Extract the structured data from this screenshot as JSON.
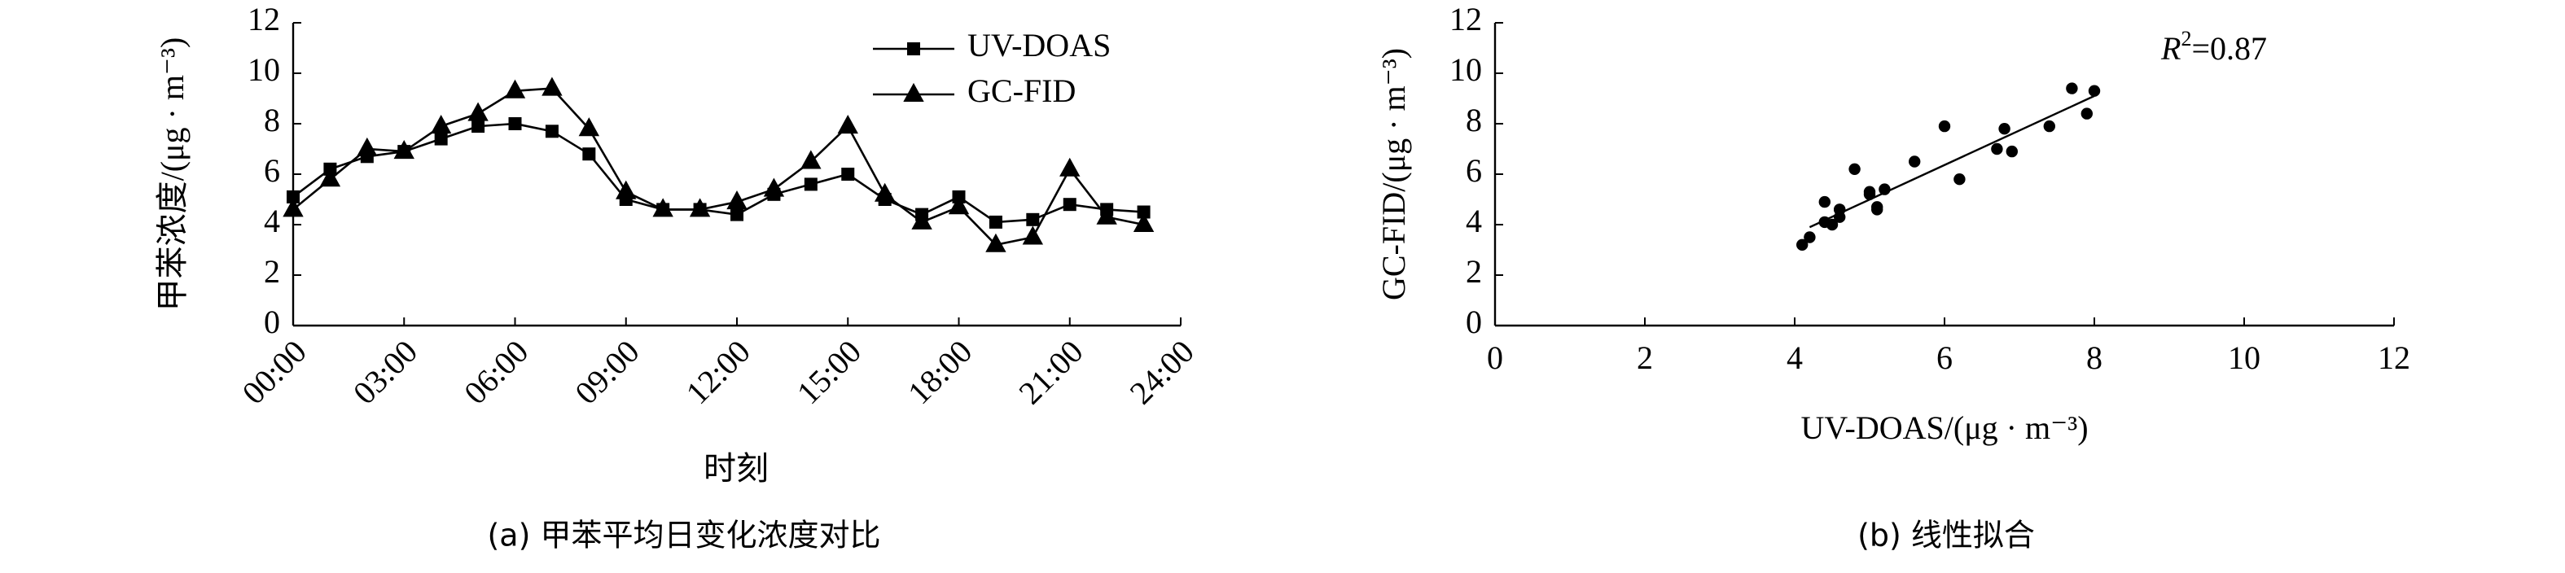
{
  "chart_data": [
    {
      "type": "line",
      "y_label": "甲苯浓度/(μg · m⁻³)",
      "x_label": "时刻",
      "caption": "(a) 甲苯平均日变化浓度对比",
      "x": [
        0,
        1,
        2,
        3,
        4,
        5,
        6,
        7,
        8,
        9,
        10,
        11,
        12,
        13,
        14,
        15,
        16,
        17,
        18,
        19,
        20,
        21,
        22,
        23
      ],
      "xlim": [
        0,
        24
      ],
      "xticks": [
        {
          "value": 0,
          "label": "00:00"
        },
        {
          "value": 3,
          "label": "03:00"
        },
        {
          "value": 6,
          "label": "06:00"
        },
        {
          "value": 9,
          "label": "09:00"
        },
        {
          "value": 12,
          "label": "12:00"
        },
        {
          "value": 15,
          "label": "15:00"
        },
        {
          "value": 18,
          "label": "18:00"
        },
        {
          "value": 21,
          "label": "21:00"
        },
        {
          "value": 24,
          "label": "24:00"
        }
      ],
      "ylim": [
        0,
        12
      ],
      "yticks": [
        0,
        2,
        4,
        6,
        8,
        10,
        12
      ],
      "legend": "top-right",
      "series": [
        {
          "name": "UV-DOAS",
          "color": "#000000",
          "marker": "square",
          "values": [
            5.1,
            6.2,
            6.7,
            6.9,
            7.4,
            7.9,
            8.0,
            7.7,
            6.8,
            5.0,
            4.6,
            4.6,
            4.4,
            5.2,
            5.6,
            6.0,
            5.0,
            4.4,
            5.1,
            4.1,
            4.2,
            4.8,
            4.6,
            4.5
          ]
        },
        {
          "name": "GC-FID",
          "color": "#000000",
          "marker": "triangle",
          "values": [
            4.6,
            5.8,
            7.0,
            6.9,
            7.9,
            8.4,
            9.3,
            9.4,
            7.8,
            5.3,
            4.6,
            4.6,
            4.9,
            5.4,
            6.5,
            7.9,
            5.2,
            4.1,
            4.7,
            3.2,
            3.5,
            6.2,
            4.3,
            4.0
          ]
        }
      ]
    },
    {
      "type": "scatter",
      "y_label": "GC-FID/(μg · m⁻³)",
      "x_label": "UV-DOAS/(μg · m⁻³)",
      "caption": "(b) 线性拟合",
      "annotation": {
        "symbol": "R",
        "exponent": "2",
        "text": "=0.87"
      },
      "xlim": [
        0,
        12
      ],
      "xticks": [
        0,
        2,
        4,
        6,
        8,
        10,
        12
      ],
      "ylim": [
        0,
        12
      ],
      "yticks": [
        0,
        2,
        4,
        6,
        8,
        10,
        12
      ],
      "color": "#000000",
      "x": [
        5.1,
        6.2,
        6.7,
        6.9,
        7.4,
        7.9,
        8.0,
        7.7,
        6.8,
        5.0,
        4.6,
        4.6,
        4.4,
        5.2,
        5.6,
        6.0,
        5.0,
        4.4,
        5.1,
        4.1,
        4.2,
        4.8,
        4.6,
        4.5
      ],
      "values": [
        4.6,
        5.8,
        7.0,
        6.9,
        7.9,
        8.4,
        9.3,
        9.4,
        7.8,
        5.3,
        4.6,
        4.6,
        4.9,
        5.4,
        6.5,
        7.9,
        5.2,
        4.1,
        4.7,
        3.2,
        3.5,
        6.2,
        4.3,
        4.0
      ],
      "fit": {
        "x": [
          4.2,
          8.0
        ],
        "y": [
          3.9,
          9.1
        ]
      }
    }
  ]
}
